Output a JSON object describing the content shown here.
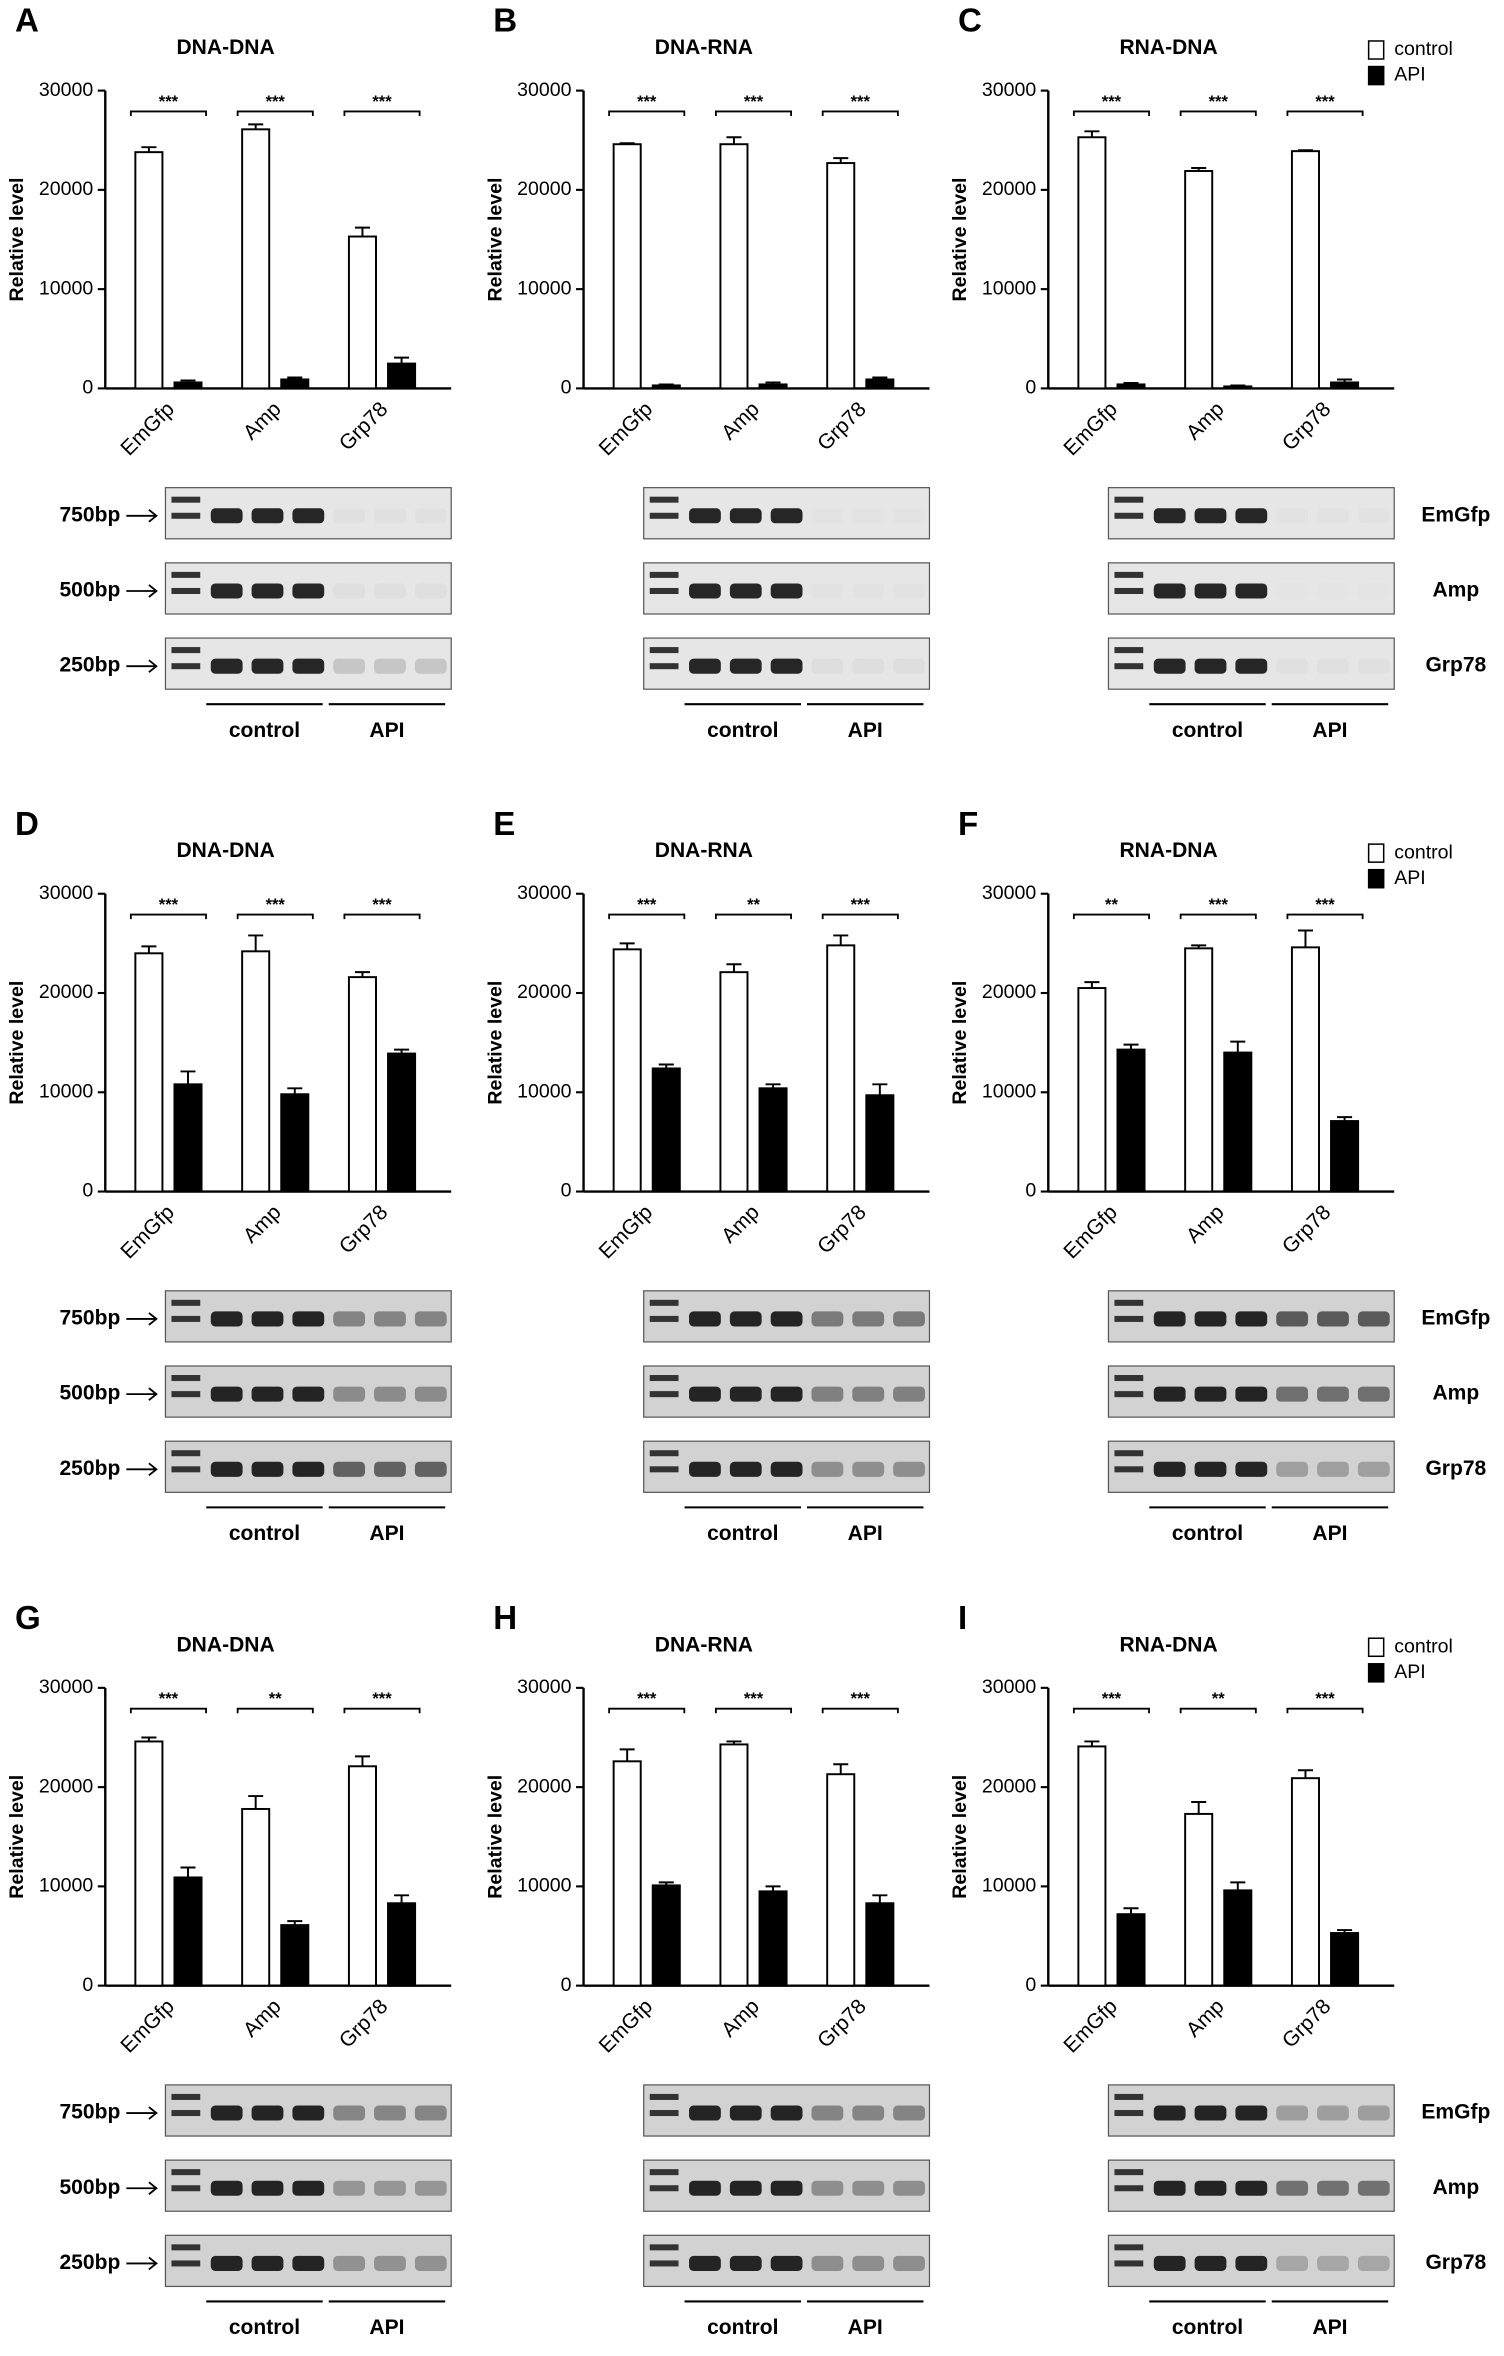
{
  "chart_data": [
    {
      "type": "bar",
      "panel": "A",
      "title": "DNA-DNA",
      "y_label": "Relative level",
      "categories": [
        "EmGfp",
        "Amp",
        "Grp78"
      ],
      "series": [
        {
          "color": "#ffffff",
          "values": [
            23800,
            26100,
            15300
          ],
          "errors": [
            500,
            500,
            900
          ]
        },
        {
          "color": "#000000",
          "values": [
            600,
            900,
            2500
          ],
          "errors": [
            200,
            200,
            600
          ]
        }
      ],
      "significance": [
        "***",
        "***",
        "***"
      ],
      "ylim": [
        0,
        30000
      ],
      "yticks": [
        0,
        10000,
        20000,
        30000
      ],
      "gel": {
        "size_labels": [
          "750bp",
          "500bp",
          "250bp"
        ],
        "group_labels": [
          "control",
          "API"
        ]
      }
    },
    {
      "type": "bar",
      "panel": "B",
      "title": "DNA-RNA",
      "y_label": "Relative level",
      "categories": [
        "EmGfp",
        "Amp",
        "Grp78"
      ],
      "series": [
        {
          "color": "#ffffff",
          "values": [
            24600,
            24600,
            22700
          ],
          "errors": [
            100,
            700,
            500
          ]
        },
        {
          "color": "#000000",
          "values": [
            300,
            400,
            900
          ],
          "errors": [
            100,
            200,
            200
          ]
        }
      ],
      "significance": [
        "***",
        "***",
        "***"
      ],
      "ylim": [
        0,
        30000
      ],
      "yticks": [
        0,
        10000,
        20000,
        30000
      ],
      "gel": {
        "group_labels": [
          "control",
          "API"
        ]
      }
    },
    {
      "type": "bar",
      "panel": "C",
      "title": "RNA-DNA",
      "y_label": "Relative level",
      "categories": [
        "EmGfp",
        "Amp",
        "Grp78"
      ],
      "series": [
        {
          "name": "control",
          "color": "#ffffff",
          "values": [
            25300,
            21900,
            23900
          ],
          "errors": [
            600,
            300,
            100
          ]
        },
        {
          "name": "API",
          "color": "#000000",
          "values": [
            400,
            200,
            600
          ],
          "errors": [
            150,
            100,
            300
          ]
        }
      ],
      "significance": [
        "***",
        "***",
        "***"
      ],
      "ylim": [
        0,
        30000
      ],
      "yticks": [
        0,
        10000,
        20000,
        30000
      ],
      "legend": "upper right",
      "gel": {
        "band_labels": [
          "EmGfp",
          "Amp",
          "Grp78"
        ],
        "group_labels": [
          "control",
          "API"
        ]
      }
    },
    {
      "type": "bar",
      "panel": "D",
      "title": "DNA-DNA",
      "y_label": "Relative level",
      "categories": [
        "EmGfp",
        "Amp",
        "Grp78"
      ],
      "series": [
        {
          "color": "#ffffff",
          "values": [
            24000,
            24200,
            21600
          ],
          "errors": [
            700,
            1600,
            500
          ]
        },
        {
          "color": "#000000",
          "values": [
            10800,
            9800,
            13900
          ],
          "errors": [
            1300,
            600,
            400
          ]
        }
      ],
      "significance": [
        "***",
        "***",
        "***"
      ],
      "ylim": [
        0,
        30000
      ],
      "yticks": [
        0,
        10000,
        20000,
        30000
      ],
      "gel": {
        "size_labels": [
          "750bp",
          "500bp",
          "250bp"
        ],
        "group_labels": [
          "control",
          "API"
        ]
      }
    },
    {
      "type": "bar",
      "panel": "E",
      "title": "DNA-RNA",
      "y_label": "Relative level",
      "categories": [
        "EmGfp",
        "Amp",
        "Grp78"
      ],
      "series": [
        {
          "color": "#ffffff",
          "values": [
            24400,
            22100,
            24800
          ],
          "errors": [
            600,
            800,
            1000
          ]
        },
        {
          "color": "#000000",
          "values": [
            12400,
            10400,
            9700
          ],
          "errors": [
            400,
            400,
            1100
          ]
        }
      ],
      "significance": [
        "***",
        "**",
        "***"
      ],
      "ylim": [
        0,
        30000
      ],
      "yticks": [
        0,
        10000,
        20000,
        30000
      ],
      "gel": {
        "group_labels": [
          "control",
          "API"
        ]
      }
    },
    {
      "type": "bar",
      "panel": "F",
      "title": "RNA-DNA",
      "y_label": "Relative level",
      "categories": [
        "EmGfp",
        "Amp",
        "Grp78"
      ],
      "series": [
        {
          "name": "control",
          "color": "#ffffff",
          "values": [
            20500,
            24500,
            24600
          ],
          "errors": [
            600,
            300,
            1700
          ]
        },
        {
          "name": "API",
          "color": "#000000",
          "values": [
            14300,
            14000,
            7100
          ],
          "errors": [
            500,
            1100,
            400
          ]
        }
      ],
      "significance": [
        "**",
        "***",
        "***"
      ],
      "ylim": [
        0,
        30000
      ],
      "yticks": [
        0,
        10000,
        20000,
        30000
      ],
      "legend": "upper right",
      "gel": {
        "band_labels": [
          "EmGfp",
          "Amp",
          "Grp78"
        ],
        "group_labels": [
          "control",
          "API"
        ]
      }
    },
    {
      "type": "bar",
      "panel": "G",
      "title": "DNA-DNA",
      "y_label": "Relative level",
      "categories": [
        "EmGfp",
        "Amp",
        "Grp78"
      ],
      "series": [
        {
          "color": "#ffffff",
          "values": [
            24600,
            17800,
            22100
          ],
          "errors": [
            400,
            1300,
            1000
          ]
        },
        {
          "color": "#000000",
          "values": [
            10900,
            6100,
            8300
          ],
          "errors": [
            1000,
            400,
            800
          ]
        }
      ],
      "significance": [
        "***",
        "**",
        "***"
      ],
      "ylim": [
        0,
        30000
      ],
      "yticks": [
        0,
        10000,
        20000,
        30000
      ],
      "gel": {
        "size_labels": [
          "750bp",
          "500bp",
          "250bp"
        ],
        "group_labels": [
          "control",
          "API"
        ]
      }
    },
    {
      "type": "bar",
      "panel": "H",
      "title": "DNA-RNA",
      "y_label": "Relative level",
      "categories": [
        "EmGfp",
        "Amp",
        "Grp78"
      ],
      "series": [
        {
          "color": "#ffffff",
          "values": [
            22600,
            24300,
            21300
          ],
          "errors": [
            1200,
            300,
            1000
          ]
        },
        {
          "color": "#000000",
          "values": [
            10100,
            9500,
            8300
          ],
          "errors": [
            300,
            500,
            800
          ]
        }
      ],
      "significance": [
        "***",
        "***",
        "***"
      ],
      "ylim": [
        0,
        30000
      ],
      "yticks": [
        0,
        10000,
        20000,
        30000
      ],
      "gel": {
        "group_labels": [
          "control",
          "API"
        ]
      }
    },
    {
      "type": "bar",
      "panel": "I",
      "title": "RNA-DNA",
      "y_label": "Relative level",
      "categories": [
        "EmGfp",
        "Amp",
        "Grp78"
      ],
      "series": [
        {
          "name": "control",
          "color": "#ffffff",
          "values": [
            24100,
            17300,
            20900
          ],
          "errors": [
            500,
            1200,
            800
          ]
        },
        {
          "name": "API",
          "color": "#000000",
          "values": [
            7200,
            9600,
            5300
          ],
          "errors": [
            600,
            800,
            300
          ]
        }
      ],
      "significance": [
        "***",
        "**",
        "***"
      ],
      "ylim": [
        0,
        30000
      ],
      "yticks": [
        0,
        10000,
        20000,
        30000
      ],
      "legend": "upper right",
      "gel": {
        "band_labels": [
          "EmGfp",
          "Amp",
          "Grp78"
        ],
        "group_labels": [
          "control",
          "API"
        ]
      }
    }
  ]
}
